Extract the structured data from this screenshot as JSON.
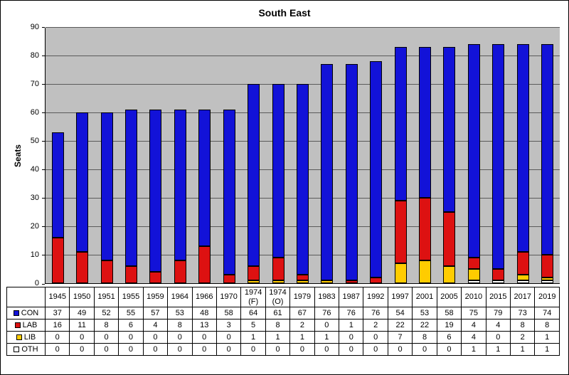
{
  "title": "South East",
  "ylabel": "Seats",
  "colors": {
    "plot_background": "#c0c0c0",
    "gridline": "#5a5a5a",
    "con": "#1212d8",
    "lab": "#dd1111",
    "lib": "#ffcc00",
    "oth": "#ffffff"
  },
  "chart_data": {
    "type": "bar",
    "stacked": true,
    "title": "South East",
    "ylabel": "Seats",
    "ylim": [
      0,
      90
    ],
    "ytick_interval": 10,
    "grid": true,
    "plot_bg": "#c0c0c0",
    "legend_position": "table-left",
    "categories": [
      "1945",
      "1950",
      "1951",
      "1955",
      "1959",
      "1964",
      "1966",
      "1970",
      "1974 (F)",
      "1974 (O)",
      "1979",
      "1983",
      "1987",
      "1992",
      "1997",
      "2001",
      "2005",
      "2010",
      "2015",
      "2017",
      "2019"
    ],
    "series": [
      {
        "name": "CON",
        "color": "#1212d8",
        "values": [
          37,
          49,
          52,
          55,
          57,
          53,
          48,
          58,
          64,
          61,
          67,
          76,
          76,
          76,
          54,
          53,
          58,
          75,
          79,
          73,
          74
        ]
      },
      {
        "name": "LAB",
        "color": "#dd1111",
        "values": [
          16,
          11,
          8,
          6,
          4,
          8,
          13,
          3,
          5,
          8,
          2,
          0,
          1,
          2,
          22,
          22,
          19,
          4,
          4,
          8,
          8
        ]
      },
      {
        "name": "LIB",
        "color": "#ffcc00",
        "values": [
          0,
          0,
          0,
          0,
          0,
          0,
          0,
          0,
          1,
          1,
          1,
          1,
          0,
          0,
          7,
          8,
          6,
          4,
          0,
          2,
          1
        ]
      },
      {
        "name": "OTH",
        "color": "#ffffff",
        "values": [
          0,
          0,
          0,
          0,
          0,
          0,
          0,
          0,
          0,
          0,
          0,
          0,
          0,
          0,
          0,
          0,
          0,
          1,
          1,
          1,
          1
        ]
      }
    ]
  }
}
